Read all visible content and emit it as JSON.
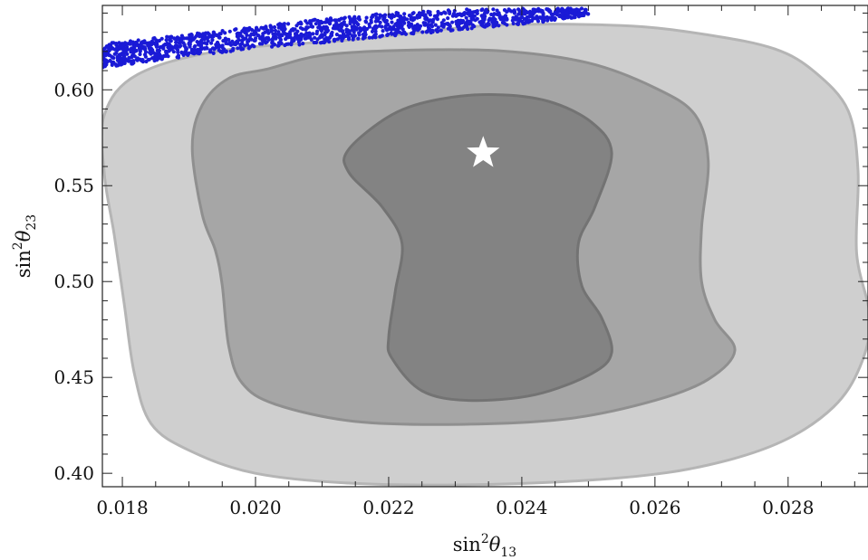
{
  "chart_data": {
    "type": "scatter",
    "title": "",
    "xlabel": {
      "base": "sin",
      "power": "2",
      "symbol": "θ",
      "subscript": "13"
    },
    "ylabel": {
      "base": "sin",
      "power": "2",
      "symbol": "θ",
      "subscript": "23"
    },
    "xlim": [
      0.0177,
      0.0292
    ],
    "ylim": [
      0.393,
      0.644
    ],
    "x_ticks": [
      0.018,
      0.02,
      0.022,
      0.024,
      0.026,
      0.028
    ],
    "x_tick_labels": [
      "0.018",
      "0.020",
      "0.022",
      "0.024",
      "0.026",
      "0.028"
    ],
    "y_ticks": [
      0.4,
      0.45,
      0.5,
      0.55,
      0.6
    ],
    "y_tick_labels": [
      "0.40",
      "0.45",
      "0.50",
      "0.55",
      "0.60"
    ],
    "grid": false,
    "best_fit": {
      "x": 0.02342,
      "y": 0.567,
      "marker": "star",
      "color": "#ffffff"
    },
    "regions": [
      {
        "level": "outer",
        "fill": "#cfcfcf",
        "stroke": "#b5b5b5",
        "outline": [
          [
            0.0195,
            0.6205
          ],
          [
            0.0215,
            0.6262
          ],
          [
            0.0235,
            0.6335
          ],
          [
            0.0255,
            0.6335
          ],
          [
            0.0268,
            0.6286
          ],
          [
            0.0278,
            0.6213
          ],
          [
            0.0284,
            0.6093
          ],
          [
            0.0289,
            0.5892
          ],
          [
            0.02905,
            0.5578
          ],
          [
            0.02903,
            0.5145
          ],
          [
            0.02923,
            0.4807
          ],
          [
            0.02908,
            0.4556
          ],
          [
            0.02868,
            0.4345
          ],
          [
            0.0279,
            0.4165
          ],
          [
            0.0268,
            0.4043
          ],
          [
            0.0255,
            0.3977
          ],
          [
            0.0235,
            0.3942
          ],
          [
            0.0215,
            0.3947
          ],
          [
            0.02,
            0.4
          ],
          [
            0.019,
            0.412
          ],
          [
            0.01843,
            0.426
          ],
          [
            0.01818,
            0.452
          ],
          [
            0.01803,
            0.488
          ],
          [
            0.01788,
            0.524
          ],
          [
            0.01773,
            0.556
          ],
          [
            0.01773,
            0.587
          ],
          [
            0.01823,
            0.608
          ]
        ]
      },
      {
        "level": "middle",
        "fill": "#a6a6a6",
        "stroke": "#8f8f8f",
        "outline": [
          [
            0.0202,
            0.611
          ],
          [
            0.021,
            0.618
          ],
          [
            0.0222,
            0.6206
          ],
          [
            0.0237,
            0.6202
          ],
          [
            0.025,
            0.614
          ],
          [
            0.026,
            0.601
          ],
          [
            0.0266,
            0.587
          ],
          [
            0.0268,
            0.563
          ],
          [
            0.0267,
            0.528
          ],
          [
            0.0267,
            0.5
          ],
          [
            0.0269,
            0.48
          ],
          [
            0.0272,
            0.464
          ],
          [
            0.0268,
            0.449
          ],
          [
            0.026,
            0.438
          ],
          [
            0.0247,
            0.4285
          ],
          [
            0.0231,
            0.4255
          ],
          [
            0.0215,
            0.427
          ],
          [
            0.0203,
            0.436
          ],
          [
            0.0198,
            0.447
          ],
          [
            0.0196,
            0.466
          ],
          [
            0.0195,
            0.498
          ],
          [
            0.0194,
            0.516
          ],
          [
            0.0192,
            0.535
          ],
          [
            0.01905,
            0.57
          ],
          [
            0.0192,
            0.592
          ],
          [
            0.0196,
            0.606
          ]
        ]
      },
      {
        "level": "inner",
        "fill": "#838383",
        "stroke": "#737373",
        "outline": [
          [
            0.02205,
            0.587
          ],
          [
            0.02275,
            0.595
          ],
          [
            0.0236,
            0.5975
          ],
          [
            0.0244,
            0.594
          ],
          [
            0.02505,
            0.583
          ],
          [
            0.02535,
            0.567
          ],
          [
            0.0251,
            0.539
          ],
          [
            0.02485,
            0.52
          ],
          [
            0.0249,
            0.498
          ],
          [
            0.0252,
            0.481
          ],
          [
            0.02535,
            0.463
          ],
          [
            0.02505,
            0.452
          ],
          [
            0.0242,
            0.441
          ],
          [
            0.0232,
            0.438
          ],
          [
            0.0225,
            0.443
          ],
          [
            0.02205,
            0.46
          ],
          [
            0.022,
            0.471
          ],
          [
            0.0221,
            0.495
          ],
          [
            0.0222,
            0.52
          ],
          [
            0.0219,
            0.539
          ],
          [
            0.0214,
            0.557
          ],
          [
            0.0214,
            0.569
          ]
        ]
      }
    ],
    "scatter_band": {
      "color": "#1a1ad6",
      "x_range": [
        0.0177,
        0.025
      ],
      "lower_edge": {
        "x": [
          0.0177,
          0.019,
          0.02,
          0.021,
          0.022,
          0.0232,
          0.0245,
          0.025
        ],
        "y": [
          0.6115,
          0.6175,
          0.6215,
          0.6245,
          0.628,
          0.6315,
          0.636,
          0.639
        ]
      },
      "upper_edge": {
        "x": [
          0.0177,
          0.019,
          0.02,
          0.021,
          0.022,
          0.0232,
          0.0245,
          0.025
        ],
        "y": [
          0.624,
          0.629,
          0.633,
          0.637,
          0.64,
          0.642,
          0.6425,
          0.6425
        ]
      },
      "points": 1400
    }
  }
}
